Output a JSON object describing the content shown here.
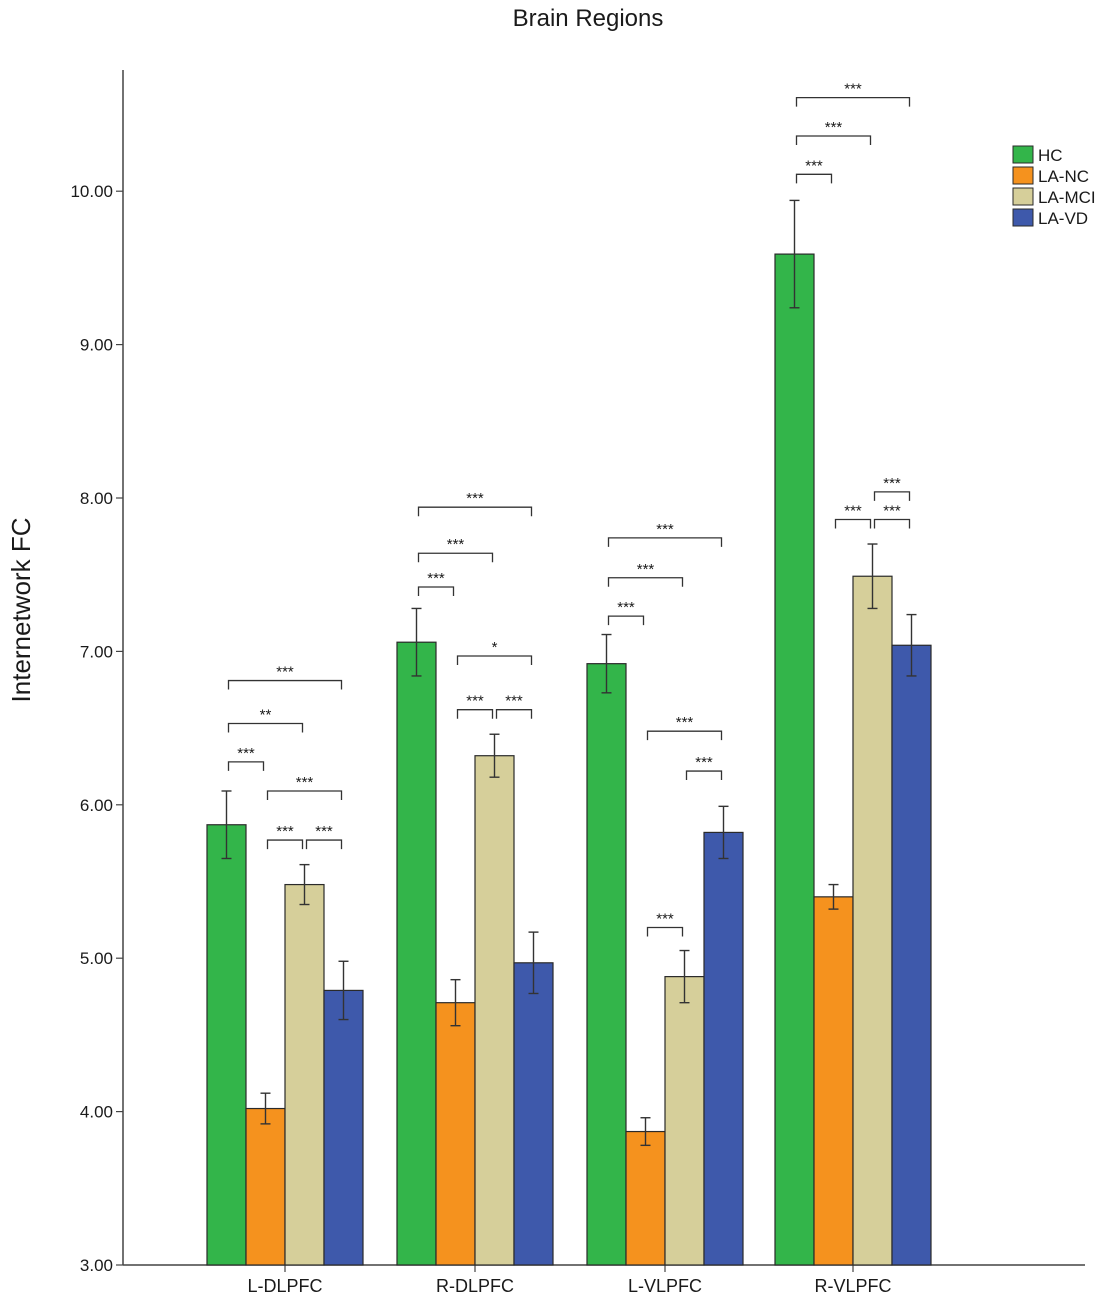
{
  "chart_data": {
    "type": "bar",
    "title": "Brain Regions",
    "xlabel": "",
    "ylabel": "Internetwork FC",
    "ylim": [
      3.0,
      10.9
    ],
    "yticks": [
      3.0,
      4.0,
      5.0,
      6.0,
      7.0,
      8.0,
      9.0,
      10.0
    ],
    "ytick_labels": [
      "3.00",
      "4.00",
      "5.00",
      "6.00",
      "7.00",
      "8.00",
      "9.00",
      "10.00"
    ],
    "grid": false,
    "legend_position": "top-right",
    "categories": [
      "L-DLPFC",
      "R-DLPFC",
      "L-VLPFC",
      "R-VLPFC"
    ],
    "series": [
      {
        "name": "HC",
        "color": "#33b54a",
        "values": [
          5.87,
          7.06,
          6.92,
          9.59
        ],
        "err": [
          0.22,
          0.22,
          0.19,
          0.35
        ]
      },
      {
        "name": "LA-NC",
        "color": "#f5921e",
        "values": [
          4.02,
          4.71,
          3.87,
          5.4
        ],
        "err": [
          0.1,
          0.15,
          0.09,
          0.08
        ]
      },
      {
        "name": "LA-MCI",
        "color": "#d6cf9a",
        "values": [
          5.48,
          6.32,
          4.88,
          7.49
        ],
        "err": [
          0.13,
          0.14,
          0.17,
          0.21
        ]
      },
      {
        "name": "LA-VD",
        "color": "#3e59ab",
        "values": [
          4.79,
          4.97,
          5.82,
          7.04
        ],
        "err": [
          0.19,
          0.2,
          0.17,
          0.2
        ]
      }
    ],
    "significance": [
      {
        "category": 0,
        "from": 0,
        "to": 1,
        "level": 6.28,
        "label": "***"
      },
      {
        "category": 0,
        "from": 0,
        "to": 2,
        "level": 6.53,
        "label": "**"
      },
      {
        "category": 0,
        "from": 0,
        "to": 3,
        "level": 6.81,
        "label": "***"
      },
      {
        "category": 0,
        "from": 1,
        "to": 2,
        "level": 5.77,
        "label": "***"
      },
      {
        "category": 0,
        "from": 2,
        "to": 3,
        "level": 5.77,
        "label": "***"
      },
      {
        "category": 0,
        "from": 1,
        "to": 3,
        "level": 6.09,
        "label": "***"
      },
      {
        "category": 1,
        "from": 0,
        "to": 1,
        "level": 7.42,
        "label": "***"
      },
      {
        "category": 1,
        "from": 0,
        "to": 2,
        "level": 7.64,
        "label": "***"
      },
      {
        "category": 1,
        "from": 0,
        "to": 3,
        "level": 7.94,
        "label": "***"
      },
      {
        "category": 1,
        "from": 1,
        "to": 3,
        "level": 6.97,
        "label": "*"
      },
      {
        "category": 1,
        "from": 1,
        "to": 2,
        "level": 6.62,
        "label": "***"
      },
      {
        "category": 1,
        "from": 2,
        "to": 3,
        "level": 6.62,
        "label": "***"
      },
      {
        "category": 2,
        "from": 0,
        "to": 1,
        "level": 7.23,
        "label": "***"
      },
      {
        "category": 2,
        "from": 0,
        "to": 2,
        "level": 7.48,
        "label": "***"
      },
      {
        "category": 2,
        "from": 0,
        "to": 3,
        "level": 7.74,
        "label": "***"
      },
      {
        "category": 2,
        "from": 1,
        "to": 3,
        "level": 6.48,
        "label": "***"
      },
      {
        "category": 2,
        "from": 2,
        "to": 3,
        "level": 6.22,
        "label": "***"
      },
      {
        "category": 2,
        "from": 1,
        "to": 2,
        "level": 5.2,
        "label": "***"
      },
      {
        "category": 3,
        "from": 0,
        "to": 1,
        "level": 10.11,
        "label": "***"
      },
      {
        "category": 3,
        "from": 0,
        "to": 2,
        "level": 10.36,
        "label": "***"
      },
      {
        "category": 3,
        "from": 0,
        "to": 3,
        "level": 10.61,
        "label": "***"
      },
      {
        "category": 3,
        "from": 2,
        "to": 3,
        "level": 8.04,
        "label": "***"
      },
      {
        "category": 3,
        "from": 1,
        "to": 2,
        "level": 7.86,
        "label": "***"
      },
      {
        "category": 3,
        "from": 2,
        "to": 3,
        "level": 7.86,
        "label": "***"
      }
    ]
  }
}
